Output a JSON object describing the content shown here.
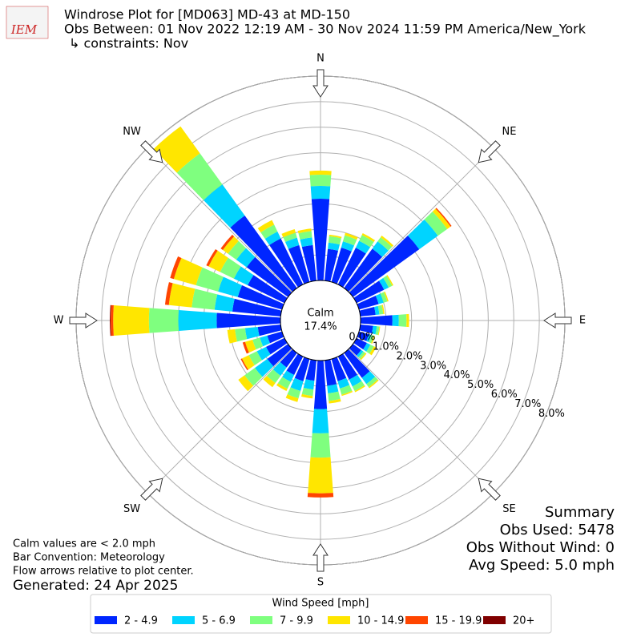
{
  "chart_data": {
    "type": "windrose",
    "logo_text": "IEM",
    "title_lines": [
      "Windrose Plot for [MD063] MD-43 at MD-150",
      "Obs Between: 01 Nov 2022 12:19 AM - 30 Nov 2024 11:59 PM America/New_York",
      "↳ constraints: Nov"
    ],
    "x": [
      0,
      10,
      20,
      30,
      40,
      50,
      60,
      70,
      80,
      90,
      100,
      110,
      120,
      130,
      140,
      150,
      160,
      170,
      180,
      190,
      200,
      210,
      220,
      230,
      240,
      250,
      260,
      270,
      280,
      290,
      300,
      310,
      320,
      330,
      340,
      350
    ],
    "series": [
      {
        "name": "2 - 4.9",
        "color": "#0026ff",
        "values": [
          3.2,
          1.25,
          1.4,
          1.6,
          1.9,
          3.2,
          1.2,
          0.8,
          0.6,
          1.25,
          0.5,
          0.4,
          0.45,
          0.4,
          1.2,
          1.0,
          0.9,
          1.0,
          1.9,
          0.8,
          0.9,
          0.8,
          0.7,
          1.0,
          0.8,
          0.6,
          0.9,
          2.5,
          1.9,
          1.8,
          1.6,
          2.0,
          3.5,
          2.0,
          1.5,
          1.4
        ]
      },
      {
        "name": "5 - 6.9",
        "color": "#00d4ff",
        "values": [
          0.5,
          0.25,
          0.25,
          0.3,
          0.35,
          0.9,
          0.2,
          0.2,
          0.15,
          0.25,
          0.15,
          0.1,
          0.15,
          0.1,
          0.3,
          0.3,
          0.3,
          0.3,
          0.95,
          0.35,
          0.4,
          0.3,
          0.4,
          0.6,
          0.4,
          0.3,
          0.5,
          1.5,
          0.7,
          0.8,
          0.6,
          0.5,
          1.5,
          0.3,
          0.3,
          0.3
        ]
      },
      {
        "name": "7 - 9.9",
        "color": "#7fff7f",
        "values": [
          0.44,
          0.25,
          0.25,
          0.25,
          0.2,
          0.45,
          0.15,
          0.15,
          0.15,
          0.3,
          0.1,
          0.1,
          0.15,
          0.1,
          0.15,
          0.2,
          0.25,
          0.3,
          0.95,
          0.25,
          0.3,
          0.3,
          0.35,
          0.5,
          0.35,
          0.3,
          0.4,
          1.15,
          0.9,
          0.9,
          0.6,
          0.4,
          1.5,
          0.3,
          0.2,
          0.25
        ]
      },
      {
        "name": "10 - 14.9",
        "color": "#ffe600",
        "values": [
          0.16,
          0.06,
          0.1,
          0.08,
          0.08,
          0.16,
          0.05,
          0.05,
          0.05,
          0.1,
          0.03,
          0.05,
          0.1,
          0.05,
          0.05,
          0.05,
          0.05,
          0.1,
          1.4,
          0.1,
          0.15,
          0.1,
          0.2,
          0.3,
          0.3,
          0.3,
          0.3,
          1.4,
          0.9,
          0.9,
          0.5,
          0.25,
          1.3,
          0.2,
          0.15,
          0.1
        ]
      },
      {
        "name": "15 - 19.9",
        "color": "#ff4500",
        "values": [
          0,
          0,
          0,
          0,
          0,
          0.05,
          0,
          0,
          0,
          0,
          0,
          0,
          0,
          0,
          0,
          0,
          0,
          0,
          0.16,
          0,
          0,
          0,
          0,
          0,
          0.05,
          0.1,
          0,
          0.1,
          0.15,
          0.15,
          0.1,
          0.1,
          0,
          0,
          0,
          0
        ]
      },
      {
        "name": "20+",
        "color": "#800000",
        "values": [
          0,
          0,
          0,
          0,
          0,
          0,
          0,
          0,
          0,
          0,
          0,
          0,
          0,
          0,
          0,
          0,
          0,
          0,
          0,
          0,
          0,
          0,
          0,
          0,
          0,
          0,
          0,
          0.03,
          0,
          0,
          0,
          0,
          0,
          0,
          0,
          0
        ]
      }
    ],
    "ylim": [
      0,
      8
    ],
    "yticks": [
      {
        "value": 0,
        "label": "0.0%"
      },
      {
        "value": 1,
        "label": "1.0%"
      },
      {
        "value": 2,
        "label": "2.0%"
      },
      {
        "value": 3,
        "label": "3.0%"
      },
      {
        "value": 4,
        "label": "4.0%"
      },
      {
        "value": 5,
        "label": "5.0%"
      },
      {
        "value": 6,
        "label": "6.0%"
      },
      {
        "value": 7,
        "label": "7.0%"
      },
      {
        "value": 8,
        "label": "8.0%"
      }
    ],
    "compass": [
      {
        "label": "N",
        "angle": 0
      },
      {
        "label": "NE",
        "angle": 45
      },
      {
        "label": "E",
        "angle": 90
      },
      {
        "label": "SE",
        "angle": 135
      },
      {
        "label": "S",
        "angle": 180
      },
      {
        "label": "SW",
        "angle": 225
      },
      {
        "label": "W",
        "angle": 270
      },
      {
        "label": "NW",
        "angle": 315
      }
    ],
    "calm_label": "Calm",
    "calm_value": 17.4,
    "calm_value_label": "17.4%",
    "summary": [
      "Summary",
      "Obs Used: 5478",
      "Obs Without Wind: 0",
      "Avg Speed: 5.0 mph"
    ],
    "notes": [
      "Calm values are < 2.0 mph",
      "Bar Convention: Meteorology",
      "Flow arrows relative to plot center."
    ],
    "generated": "Generated: 24 Apr 2025",
    "legend_title": "Wind Speed [mph]",
    "grid": true
  }
}
